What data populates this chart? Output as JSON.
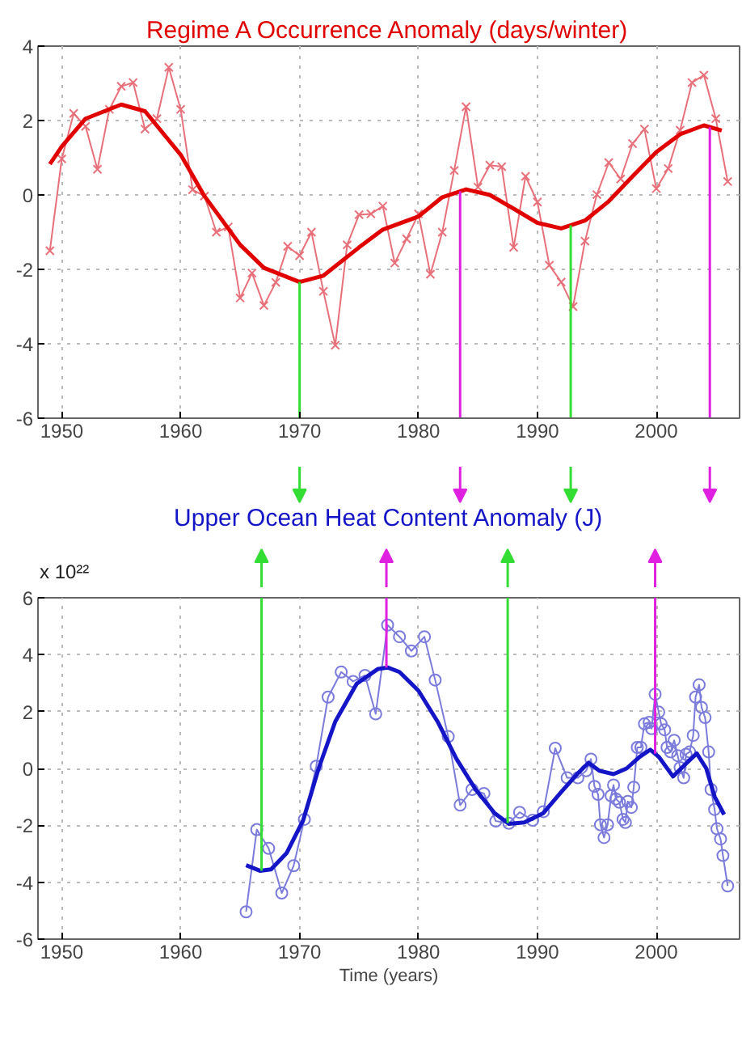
{
  "chart_data": [
    {
      "type": "line",
      "title": "Regime A Occurrence Anomaly (days/winter)",
      "xlim": [
        1948,
        2007
      ],
      "ylim": [
        -6,
        4
      ],
      "xticks": [
        1950,
        1960,
        1970,
        1980,
        1990,
        2000
      ],
      "yticks": [
        -6,
        -4,
        -2,
        0,
        2,
        4
      ],
      "grid": true,
      "series": [
        {
          "color": "#e8707a",
          "marker": "cross",
          "x": [
            1949,
            1950,
            1951,
            1952,
            1953,
            1954,
            1955,
            1956,
            1957,
            1958,
            1959,
            1960,
            1961,
            1962,
            1963,
            1964,
            1965,
            1966,
            1967,
            1968,
            1969,
            1970,
            1971,
            1972,
            1973,
            1974,
            1975,
            1976,
            1977,
            1978,
            1979,
            1980,
            1981,
            1982,
            1983,
            1984,
            1985,
            1986,
            1987,
            1988,
            1989,
            1990,
            1991,
            1992,
            1993,
            1994,
            1995,
            1996,
            1997,
            1998,
            1999,
            2000,
            2001,
            2002,
            2003,
            2004,
            2005,
            2006
          ],
          "values": [
            -1.5,
            0.97,
            2.19,
            1.84,
            0.69,
            2.3,
            2.92,
            3.02,
            1.77,
            2.05,
            3.43,
            2.3,
            0.14,
            -0.03,
            -1.0,
            -0.86,
            -2.77,
            -2.1,
            -2.97,
            -2.35,
            -1.38,
            -1.63,
            -1.0,
            -2.59,
            -4.04,
            -1.34,
            -0.53,
            -0.51,
            -0.3,
            -1.83,
            -1.18,
            -0.51,
            -2.13,
            -1.0,
            0.66,
            2.37,
            0.21,
            0.8,
            0.76,
            -1.41,
            0.5,
            -0.19,
            -1.89,
            -2.34,
            -3.0,
            -1.24,
            0.01,
            0.87,
            0.43,
            1.38,
            1.77,
            0.17,
            0.71,
            1.74,
            3.02,
            3.22,
            2.05,
            0.36
          ]
        },
        {
          "color": "#e00000",
          "marker": "none",
          "x": [
            1949,
            1950,
            1952,
            1955,
            1957,
            1960,
            1962,
            1965,
            1967,
            1970,
            1972,
            1975,
            1977,
            1980,
            1982,
            1984,
            1986,
            1988,
            1990,
            1992,
            1994,
            1996,
            1998,
            2000,
            2002,
            2004,
            2005.5
          ],
          "values": [
            0.83,
            1.3,
            2.05,
            2.43,
            2.25,
            1.08,
            -0.03,
            -1.34,
            -1.96,
            -2.34,
            -2.17,
            -1.41,
            -0.93,
            -0.58,
            -0.06,
            0.15,
            0.0,
            -0.37,
            -0.75,
            -0.9,
            -0.69,
            -0.17,
            0.5,
            1.15,
            1.63,
            1.87,
            1.73
          ]
        }
      ],
      "ref_lines": [
        {
          "axis": "x",
          "value": 1970,
          "color": "#33dd33"
        },
        {
          "axis": "x",
          "value": 1983.5,
          "color": "#e020e0"
        },
        {
          "axis": "x",
          "value": 1992.8,
          "color": "#33dd33"
        },
        {
          "axis": "x",
          "value": 2004.5,
          "color": "#e020e0"
        }
      ]
    },
    {
      "type": "line",
      "title": "Upper Ocean Heat Content Anomaly (J)",
      "xlabel": "Time (years)",
      "xlim": [
        1948,
        2007
      ],
      "ylim": [
        -6,
        6
      ],
      "xticks": [
        1950,
        1960,
        1970,
        1980,
        1990,
        2000
      ],
      "yticks": [
        -6,
        -4,
        -2,
        0,
        2,
        4,
        6
      ],
      "grid": true,
      "annotations": [
        "x 10²²"
      ],
      "series": [
        {
          "color": "#7b7bdc",
          "marker": "circle",
          "x": [
            1965.5,
            1966.4,
            1967.4,
            1968.5,
            1969.5,
            1970.4,
            1971.4,
            1972.4,
            1973.5,
            1974.5,
            1975.5,
            1976.4,
            1977.4,
            1978.4,
            1979.4,
            1980.5,
            1981.4,
            1982.5,
            1983.5,
            1984.5,
            1985.5,
            1986.5,
            1987.6,
            1988.5,
            1989.6,
            1990.5,
            1991.5,
            1992.5,
            1993.4,
            1994.1,
            1994.5,
            1994.8,
            1995.1,
            1995.3,
            1995.6,
            1995.9,
            1996.2,
            1996.4,
            1996.6,
            1996.9,
            1997.2,
            1997.4,
            1997.6,
            1997.9,
            1998.1,
            1998.4,
            1998.7,
            1999.0,
            1999.4,
            1999.6,
            1999.9,
            2000.2,
            2000.4,
            2000.7,
            2000.9,
            2001.2,
            2001.5,
            2001.8,
            2002.0,
            2002.3,
            2002.5,
            2002.8,
            2003.1,
            2003.3,
            2003.6,
            2003.8,
            2004.1,
            2004.4,
            2004.6,
            2004.9,
            2005.1,
            2005.4,
            2005.6,
            2006.0
          ],
          "values": [
            -5.04,
            -2.15,
            -2.81,
            -4.38,
            -3.42,
            -1.79,
            0.08,
            2.51,
            3.39,
            3.06,
            3.27,
            1.92,
            5.04,
            4.63,
            4.13,
            4.63,
            3.11,
            1.12,
            -1.29,
            -0.74,
            -0.88,
            -1.85,
            -1.93,
            -1.54,
            -1.82,
            -1.52,
            0.71,
            -0.33,
            -0.33,
            -0.08,
            0.33,
            -0.63,
            -0.91,
            -1.98,
            -2.43,
            -1.98,
            -0.96,
            -0.58,
            -1.07,
            -1.19,
            -1.79,
            -1.9,
            -1.16,
            -1.37,
            -0.66,
            0.74,
            0.74,
            1.57,
            1.62,
            1.4,
            2.61,
            1.98,
            1.57,
            1.36,
            0.74,
            0.58,
            0.99,
            0.45,
            0.03,
            -0.33,
            0.5,
            0.58,
            1.16,
            2.51,
            2.94,
            2.15,
            1.79,
            0.58,
            -0.74,
            -1.44,
            -2.12,
            -2.48,
            -3.06,
            -4.13
          ]
        },
        {
          "color": "#1515c8",
          "marker": "none",
          "x": [
            1965.5,
            1966.7,
            1967.6,
            1968.9,
            1970.3,
            1971.6,
            1973,
            1974.8,
            1976.6,
            1977.4,
            1978.4,
            1980,
            1981.6,
            1983.2,
            1984.8,
            1986.4,
            1987.6,
            1988.9,
            1990.5,
            1992.0,
            1993.4,
            1994.3,
            1995.2,
            1996.4,
            1997.5,
            1998.6,
            1999.5,
            2000.2,
            2001.4,
            2002.5,
            2003.4,
            2004.2,
            2004.9,
            2005.7
          ],
          "values": [
            -3.4,
            -3.6,
            -3.55,
            -2.98,
            -1.82,
            0.0,
            1.65,
            2.98,
            3.5,
            3.55,
            3.39,
            2.73,
            1.65,
            0.33,
            -0.74,
            -1.57,
            -1.95,
            -1.9,
            -1.57,
            -0.83,
            -0.17,
            0.2,
            -0.08,
            -0.2,
            0.0,
            0.41,
            0.66,
            0.41,
            -0.28,
            0.17,
            0.53,
            0.0,
            -0.99,
            -1.62
          ]
        }
      ],
      "ref_lines": [
        {
          "axis": "x",
          "value": 1966.8,
          "color": "#33dd33"
        },
        {
          "axis": "x",
          "value": 1977.3,
          "color": "#e020e0"
        },
        {
          "axis": "x",
          "value": 1987.5,
          "color": "#33dd33"
        },
        {
          "axis": "x",
          "value": 1999.9,
          "color": "#e020e0"
        }
      ]
    }
  ]
}
